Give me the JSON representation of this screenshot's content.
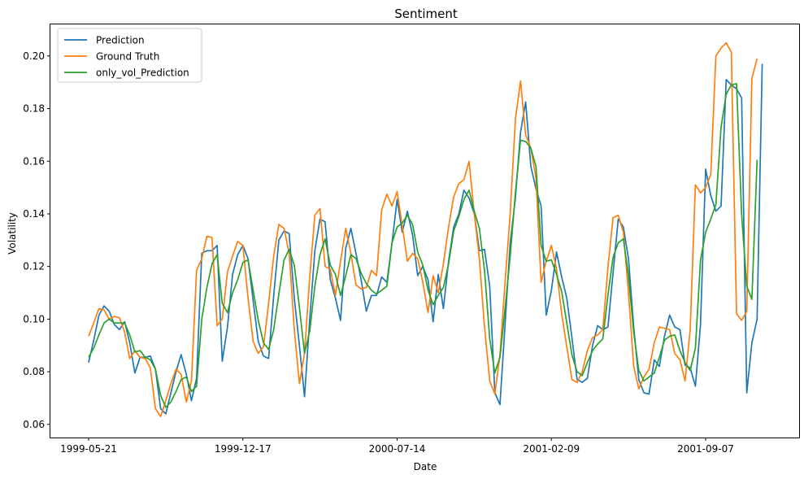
{
  "chart_data": {
    "type": "line",
    "title": "Sentiment",
    "xlabel": "Date",
    "ylabel": "Volatility",
    "xticks": [
      "1999-05-21",
      "1999-12-17",
      "2000-07-14",
      "2001-02-09",
      "2001-09-07"
    ],
    "ylim": [
      0.055,
      0.212
    ],
    "yticks": [
      0.06,
      0.08,
      0.1,
      0.12,
      0.14,
      0.16,
      0.18,
      0.2
    ],
    "ytick_labels": [
      "0.06",
      "0.08",
      "0.10",
      "0.12",
      "0.14",
      "0.16",
      "0.18",
      "0.20"
    ],
    "grid": false,
    "legend_position": "upper-left",
    "colors": {
      "Prediction": "#1f77b4",
      "Ground Truth": "#ff7f0e",
      "only_vol_Prediction": "#2ca02c"
    },
    "x_start": "1999-05-21",
    "x_step_weeks": 1,
    "x_index_ticks": [
      0,
      30,
      60,
      90,
      120
    ],
    "series": [
      {
        "name": "Prediction",
        "values": [
          0.0835,
          0.092,
          0.1015,
          0.105,
          0.103,
          0.098,
          0.096,
          0.099,
          0.091,
          0.0795,
          0.0855,
          0.0855,
          0.086,
          0.081,
          0.066,
          0.064,
          0.072,
          0.08,
          0.0865,
          0.079,
          0.069,
          0.0775,
          0.125,
          0.126,
          0.126,
          0.128,
          0.084,
          0.097,
          0.117,
          0.1245,
          0.128,
          0.123,
          0.107,
          0.0915,
          0.086,
          0.085,
          0.109,
          0.13,
          0.1335,
          0.1325,
          0.108,
          0.09,
          0.0705,
          0.1,
          0.126,
          0.138,
          0.137,
          0.115,
          0.108,
          0.0995,
          0.127,
          0.1345,
          0.125,
          0.115,
          0.103,
          0.109,
          0.109,
          0.116,
          0.114,
          0.129,
          0.1455,
          0.133,
          0.141,
          0.132,
          0.1165,
          0.12,
          0.115,
          0.099,
          0.117,
          0.104,
          0.122,
          0.135,
          0.14,
          0.149,
          0.146,
          0.14,
          0.126,
          0.1265,
          0.1125,
          0.072,
          0.0675,
          0.098,
          0.129,
          0.146,
          0.171,
          0.1825,
          0.158,
          0.1495,
          0.143,
          0.1015,
          0.111,
          0.1255,
          0.116,
          0.108,
          0.093,
          0.077,
          0.076,
          0.0775,
          0.09,
          0.0975,
          0.096,
          0.097,
          0.1175,
          0.138,
          0.135,
          0.123,
          0.097,
          0.077,
          0.072,
          0.0715,
          0.0845,
          0.082,
          0.0935,
          0.1015,
          0.097,
          0.096,
          0.0825,
          0.0815,
          0.0745,
          0.098,
          0.157,
          0.147,
          0.141,
          0.143,
          0.191,
          0.189,
          0.1875,
          0.184,
          0.072,
          0.091,
          0.1,
          0.197
        ]
      },
      {
        "name": "Ground Truth",
        "values": [
          0.0935,
          0.0985,
          0.104,
          0.1035,
          0.1,
          0.101,
          0.1005,
          0.095,
          0.085,
          0.088,
          0.0855,
          0.085,
          0.0815,
          0.066,
          0.063,
          0.069,
          0.0755,
          0.081,
          0.079,
          0.0685,
          0.0765,
          0.1185,
          0.123,
          0.1315,
          0.131,
          0.0975,
          0.1,
          0.118,
          0.124,
          0.1295,
          0.128,
          0.108,
          0.0915,
          0.087,
          0.0895,
          0.106,
          0.124,
          0.136,
          0.1345,
          0.125,
          0.096,
          0.0755,
          0.087,
          0.116,
          0.1395,
          0.142,
          0.12,
          0.119,
          0.109,
          0.122,
          0.1345,
          0.125,
          0.113,
          0.1115,
          0.112,
          0.1185,
          0.1165,
          0.1415,
          0.1475,
          0.143,
          0.1485,
          0.1355,
          0.122,
          0.125,
          0.123,
          0.114,
          0.1025,
          0.1165,
          0.11,
          0.121,
          0.135,
          0.1465,
          0.1515,
          0.153,
          0.16,
          0.14,
          0.123,
          0.097,
          0.0765,
          0.0715,
          0.0865,
          0.114,
          0.14,
          0.176,
          0.1905,
          0.17,
          0.165,
          0.1535,
          0.114,
          0.122,
          0.128,
          0.119,
          0.102,
          0.0895,
          0.077,
          0.076,
          0.08,
          0.088,
          0.093,
          0.094,
          0.096,
          0.1195,
          0.1385,
          0.1395,
          0.133,
          0.11,
          0.082,
          0.0735,
          0.078,
          0.081,
          0.091,
          0.097,
          0.0965,
          0.096,
          0.087,
          0.0845,
          0.0765,
          0.096,
          0.151,
          0.148,
          0.15,
          0.155,
          0.2,
          0.203,
          0.205,
          0.2015,
          0.102,
          0.0995,
          0.103,
          0.1915,
          0.199
        ]
      },
      {
        "name": "only_vol_Prediction",
        "values": [
          0.0855,
          0.089,
          0.094,
          0.0985,
          0.1,
          0.0985,
          0.0985,
          0.0985,
          0.094,
          0.0875,
          0.088,
          0.0855,
          0.0845,
          0.081,
          0.071,
          0.0665,
          0.0685,
          0.0725,
          0.077,
          0.078,
          0.0725,
          0.0745,
          0.1,
          0.112,
          0.121,
          0.1245,
          0.106,
          0.1025,
          0.11,
          0.115,
          0.1215,
          0.1225,
          0.111,
          0.0995,
          0.091,
          0.0885,
          0.096,
          0.1095,
          0.1225,
          0.1265,
          0.1205,
          0.1045,
          0.087,
          0.0955,
          0.1125,
          0.1245,
          0.1305,
          0.1205,
          0.117,
          0.109,
          0.1165,
          0.1245,
          0.123,
          0.1175,
          0.1135,
          0.111,
          0.1095,
          0.111,
          0.1125,
          0.129,
          0.135,
          0.1365,
          0.1395,
          0.136,
          0.1255,
          0.1205,
          0.111,
          0.1055,
          0.109,
          0.112,
          0.121,
          0.1335,
          0.139,
          0.1455,
          0.149,
          0.141,
          0.1345,
          0.1185,
          0.0925,
          0.0795,
          0.0855,
          0.104,
          0.124,
          0.148,
          0.168,
          0.1675,
          0.165,
          0.158,
          0.128,
          0.122,
          0.1225,
          0.117,
          0.1105,
          0.0985,
          0.0865,
          0.08,
          0.0785,
          0.0835,
          0.088,
          0.0905,
          0.0925,
          0.109,
          0.1235,
          0.129,
          0.1305,
          0.1165,
          0.095,
          0.0805,
          0.0765,
          0.078,
          0.0795,
          0.0855,
          0.092,
          0.0935,
          0.094,
          0.088,
          0.0835,
          0.0805,
          0.089,
          0.1225,
          0.133,
          0.138,
          0.1435,
          0.173,
          0.1855,
          0.189,
          0.1895,
          0.1395,
          0.1125,
          0.1075,
          0.1605
        ]
      }
    ]
  }
}
